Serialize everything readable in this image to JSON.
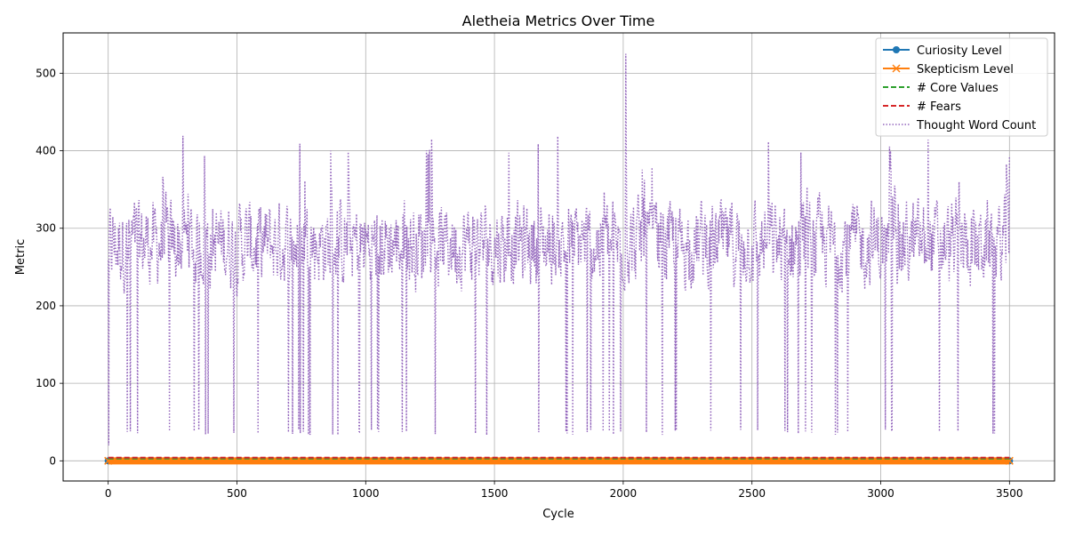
{
  "chart_data": {
    "type": "line",
    "title": "Aletheia Metrics Over Time",
    "xlabel": "Cycle",
    "ylabel": "Metric",
    "xlim": [
      -175,
      3675
    ],
    "ylim": [
      -26,
      552
    ],
    "xticks": [
      0,
      500,
      1000,
      1500,
      2000,
      2500,
      3000,
      3500
    ],
    "yticks": [
      0,
      100,
      200,
      300,
      400,
      500
    ],
    "grid": true,
    "legend_position": "top-right",
    "series": [
      {
        "name": "Curiosity Level",
        "color": "#1f77b4",
        "line_style": "solid",
        "marker": "circle",
        "x": [
          0,
          3500
        ],
        "values": [
          0,
          0
        ]
      },
      {
        "name": "Skepticism Level",
        "color": "#ff7f0e",
        "line_style": "solid",
        "marker": "x",
        "x": [
          0,
          3500
        ],
        "values": [
          0,
          0
        ]
      },
      {
        "name": "# Core Values",
        "color": "#2ca02c",
        "line_style": "dashed",
        "marker": "none",
        "x": [
          0,
          3500
        ],
        "values": [
          3,
          3
        ]
      },
      {
        "name": "# Fears",
        "color": "#d62728",
        "line_style": "dashed",
        "marker": "none",
        "x": [
          0,
          3500
        ],
        "values": [
          4,
          4
        ]
      },
      {
        "name": "Thought Word Count",
        "color": "#9467bd",
        "line_style": "dotted",
        "marker": "none",
        "x_start": 0,
        "x_end": 3500,
        "baseline": 270,
        "typical_range": [
          200,
          360
        ],
        "min": 20,
        "max": 525,
        "spike_max_x": 2010
      }
    ]
  }
}
